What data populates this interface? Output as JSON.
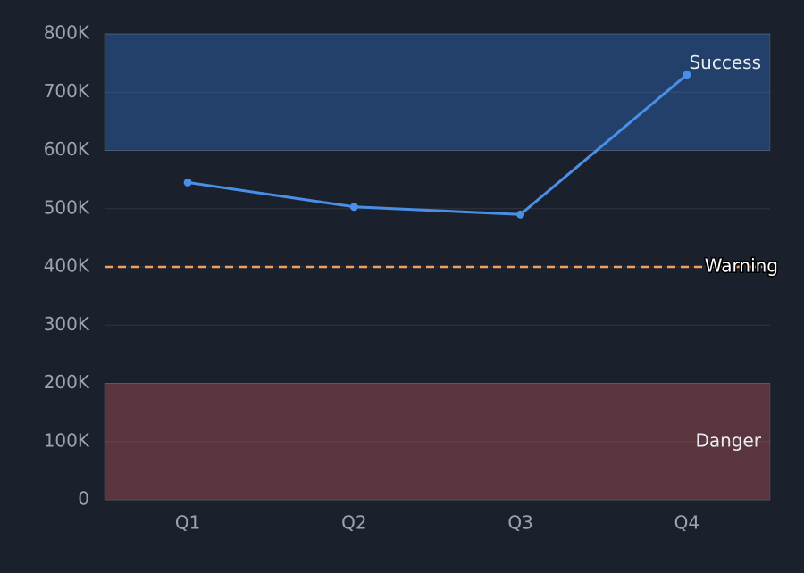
{
  "chart_data": {
    "type": "line",
    "categories": [
      "Q1",
      "Q2",
      "Q3",
      "Q4"
    ],
    "series": [
      {
        "color": "#4a8fe7",
        "values": [
          545000,
          503000,
          490000,
          730000
        ]
      }
    ],
    "ylim": [
      0,
      800000
    ],
    "yticks": [
      0,
      {
        "value": 100000,
        "label": "100K"
      },
      {
        "value": 200000,
        "label": "200K"
      },
      {
        "value": 300000,
        "label": "300K"
      },
      {
        "value": 400000,
        "label": "400K"
      },
      {
        "value": 500000,
        "label": "500K"
      },
      {
        "value": 600000,
        "label": "600K"
      },
      {
        "value": 700000,
        "label": "700K"
      },
      {
        "value": 800000,
        "label": "800K"
      }
    ],
    "grid": true,
    "bands": [
      {
        "label": "Success",
        "from": 600000,
        "to": 800000,
        "color": "#22406a"
      },
      {
        "label": "Danger",
        "from": 0,
        "to": 200000,
        "color": "#5a353d"
      }
    ],
    "reference_lines": [
      {
        "label": "Warning",
        "value": 400000,
        "color": "#f0a060"
      }
    ]
  }
}
